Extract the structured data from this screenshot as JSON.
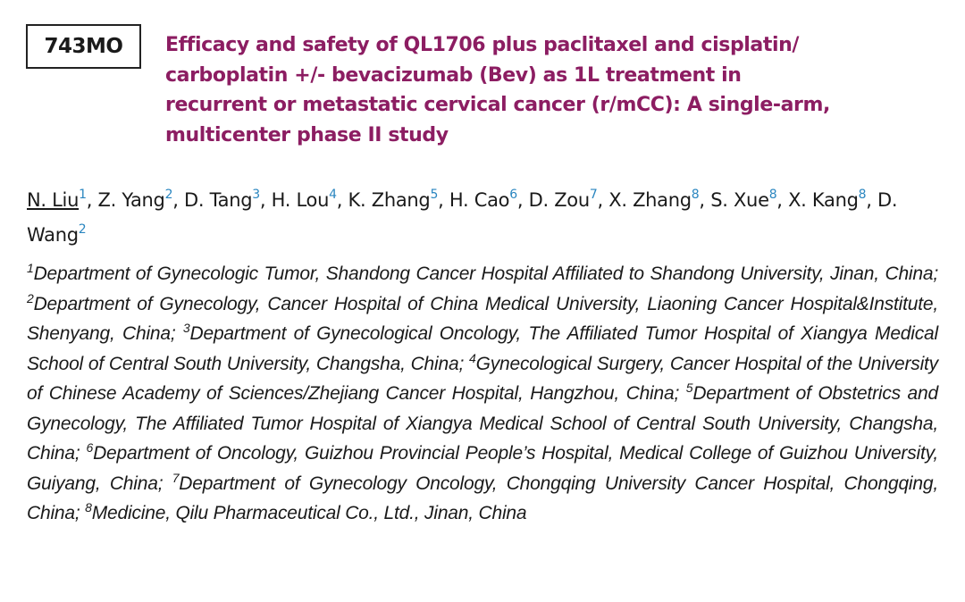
{
  "abstract_id": "743MO",
  "title_lines": [
    "Efficacy and safety of QL1706 plus paclitaxel and cisplatin/",
    "carboplatin +/- bevacizumab (Bev) as 1L treatment in",
    "recurrent or metastatic cervical cancer (r/mCC): A single-arm,",
    "multicenter phase II study"
  ],
  "separator": ",",
  "authors": [
    {
      "name": "N. Liu",
      "sup": "1"
    },
    {
      "name": "Z. Yang",
      "sup": "2"
    },
    {
      "name": "D. Tang",
      "sup": "3"
    },
    {
      "name": "H. Lou",
      "sup": "4"
    },
    {
      "name": "K. Zhang",
      "sup": "5"
    },
    {
      "name": "H. Cao",
      "sup": "6"
    },
    {
      "name": "D. Zou",
      "sup": "7"
    },
    {
      "name": "X. Zhang",
      "sup": "8"
    },
    {
      "name": "S. Xue",
      "sup": "8"
    },
    {
      "name": "X. Kang",
      "sup": "8"
    },
    {
      "name": "D. Wang",
      "sup": "2"
    }
  ],
  "affiliations": [
    {
      "sup": "1",
      "text": "Department of Gynecologic Tumor, Shandong Cancer Hospital Affiliated to Shandong University, Jinan, China;"
    },
    {
      "sup": "2",
      "text": "Department of Gynecology, Cancer Hospital of China Medical University, Liaoning Cancer Hospital&Institute, Shenyang, China;"
    },
    {
      "sup": "3",
      "text": "Department of Gynecological Oncology, The Affiliated Tumor Hospital of Xiangya Medical School of Central South University, Changsha, China;"
    },
    {
      "sup": "4",
      "text": "Gynecological Surgery, Cancer Hospital of the University of Chinese Academy of Sciences/Zhejiang Cancer Hospital, Hangzhou, China;"
    },
    {
      "sup": "5",
      "text": "Department of Obstetrics and Gynecology, The Affiliated Tumor Hospital of Xiangya Medical School of Central South University, Changsha, China;"
    },
    {
      "sup": "6",
      "text": "Department of Oncology, Guizhou Provincial People’s Hospital, Medical College of Guizhou University, Guiyang, China;"
    },
    {
      "sup": "7",
      "text": "Department of Gynecology Oncology, Chongqing University Cancer Hospital, Chongqing, China;"
    },
    {
      "sup": "8",
      "text": "Medicine, Qilu Pharmaceutical Co., Ltd., Jinan, China"
    }
  ]
}
